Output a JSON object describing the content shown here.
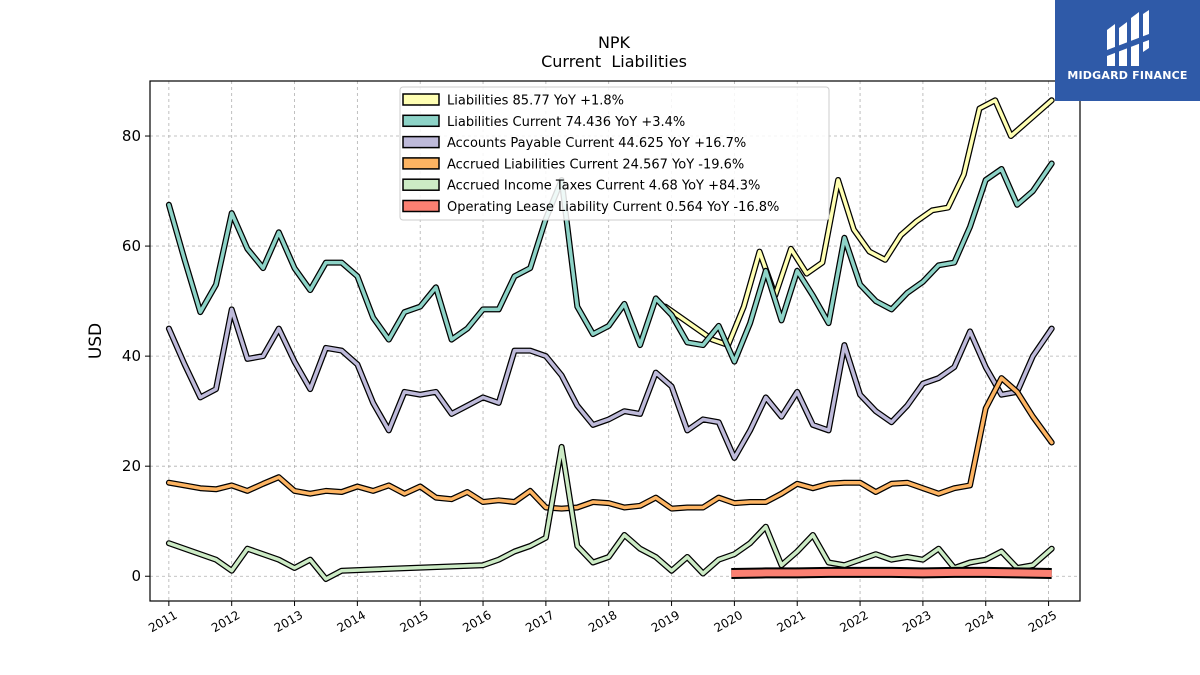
{
  "header": {
    "title": "NPK",
    "subtitle": "Current  Liabilities"
  },
  "logo": {
    "text": "MIDGARD FINANCE",
    "color": "#2f5aa8"
  },
  "chart_data": {
    "type": "line",
    "title": "NPK",
    "subtitle": "Current  Liabilities",
    "xlabel": "",
    "ylabel": "USD",
    "xlim": [
      2010.7,
      2025.5
    ],
    "ylim": [
      -4.5,
      90
    ],
    "x_ticks": [
      2011,
      2012,
      2013,
      2014,
      2015,
      2016,
      2017,
      2018,
      2019,
      2020,
      2021,
      2022,
      2023,
      2024,
      2025
    ],
    "x_tick_labels": [
      "2011",
      "2012",
      "2013",
      "2014",
      "2015",
      "2016",
      "2017",
      "2018",
      "2019",
      "2020",
      "2021",
      "2022",
      "2023",
      "2024",
      "2025"
    ],
    "y_ticks": [
      0,
      20,
      40,
      60,
      80
    ],
    "grid": true,
    "legend_position": "top-center",
    "series": [
      {
        "name": "Liabilities",
        "legend": "Liabilities  85.77 YoY +1.8%",
        "color": "#ffffb3",
        "points": [
          [
            2018.9,
            49.0
          ],
          [
            2019.15,
            47.0
          ],
          [
            2019.4,
            45.0
          ],
          [
            2019.65,
            43.0
          ],
          [
            2019.9,
            42.0
          ],
          [
            2020.15,
            49.0
          ],
          [
            2020.4,
            59.0
          ],
          [
            2020.65,
            51.0
          ],
          [
            2020.9,
            59.5
          ],
          [
            2021.15,
            55.0
          ],
          [
            2021.4,
            57.0
          ],
          [
            2021.65,
            72.0
          ],
          [
            2021.9,
            63.0
          ],
          [
            2022.15,
            59.0
          ],
          [
            2022.4,
            57.5
          ],
          [
            2022.65,
            62.0
          ],
          [
            2022.9,
            64.5
          ],
          [
            2023.15,
            66.5
          ],
          [
            2023.4,
            67.0
          ],
          [
            2023.65,
            73.0
          ],
          [
            2023.9,
            85.0
          ],
          [
            2024.15,
            86.5
          ],
          [
            2024.4,
            80.0
          ],
          [
            2024.65,
            82.5
          ],
          [
            2025.05,
            86.5
          ]
        ]
      },
      {
        "name": "Liabilities Current",
        "legend": "Liabilities Current  74.436 YoY +3.4%",
        "color": "#8dd3c7",
        "points": [
          [
            2011.0,
            67.5
          ],
          [
            2011.25,
            57.5
          ],
          [
            2011.5,
            48.0
          ],
          [
            2011.75,
            53.0
          ],
          [
            2012.0,
            66.0
          ],
          [
            2012.25,
            59.5
          ],
          [
            2012.5,
            56.0
          ],
          [
            2012.75,
            62.5
          ],
          [
            2013.0,
            56.0
          ],
          [
            2013.25,
            52.0
          ],
          [
            2013.5,
            57.0
          ],
          [
            2013.75,
            57.0
          ],
          [
            2014.0,
            54.5
          ],
          [
            2014.25,
            47.0
          ],
          [
            2014.5,
            43.0
          ],
          [
            2014.75,
            48.0
          ],
          [
            2015.0,
            49.0
          ],
          [
            2015.25,
            52.5
          ],
          [
            2015.5,
            43.0
          ],
          [
            2015.75,
            45.0
          ],
          [
            2016.0,
            48.5
          ],
          [
            2016.25,
            48.5
          ],
          [
            2016.5,
            54.5
          ],
          [
            2016.75,
            56.0
          ],
          [
            2017.0,
            65.0
          ],
          [
            2017.25,
            72.0
          ],
          [
            2017.5,
            49.0
          ],
          [
            2017.75,
            44.0
          ],
          [
            2018.0,
            45.5
          ],
          [
            2018.25,
            49.5
          ],
          [
            2018.5,
            42.0
          ],
          [
            2018.75,
            50.5
          ],
          [
            2019.0,
            47.5
          ],
          [
            2019.25,
            42.5
          ],
          [
            2019.5,
            42.0
          ],
          [
            2019.75,
            45.5
          ],
          [
            2020.0,
            39.0
          ],
          [
            2020.25,
            46.0
          ],
          [
            2020.5,
            55.5
          ],
          [
            2020.75,
            46.5
          ],
          [
            2021.0,
            55.5
          ],
          [
            2021.25,
            51.0
          ],
          [
            2021.5,
            46.0
          ],
          [
            2021.75,
            61.5
          ],
          [
            2022.0,
            53.0
          ],
          [
            2022.25,
            50.0
          ],
          [
            2022.5,
            48.5
          ],
          [
            2022.75,
            51.5
          ],
          [
            2023.0,
            53.5
          ],
          [
            2023.25,
            56.5
          ],
          [
            2023.5,
            57.0
          ],
          [
            2023.75,
            63.5
          ],
          [
            2024.0,
            72.0
          ],
          [
            2024.25,
            74.0
          ],
          [
            2024.5,
            67.5
          ],
          [
            2024.75,
            70.0
          ],
          [
            2025.05,
            75.0
          ]
        ]
      },
      {
        "name": "Accounts Payable Current",
        "legend": "Accounts Payable Current  44.625 YoY +16.7%",
        "color": "#bebada",
        "points": [
          [
            2011.0,
            45.0
          ],
          [
            2011.25,
            38.5
          ],
          [
            2011.5,
            32.5
          ],
          [
            2011.75,
            34.0
          ],
          [
            2012.0,
            48.5
          ],
          [
            2012.25,
            39.5
          ],
          [
            2012.5,
            40.0
          ],
          [
            2012.75,
            45.0
          ],
          [
            2013.0,
            39.0
          ],
          [
            2013.25,
            34.0
          ],
          [
            2013.5,
            41.5
          ],
          [
            2013.75,
            41.0
          ],
          [
            2014.0,
            38.5
          ],
          [
            2014.25,
            31.5
          ],
          [
            2014.5,
            26.5
          ],
          [
            2014.75,
            33.5
          ],
          [
            2015.0,
            33.0
          ],
          [
            2015.25,
            33.5
          ],
          [
            2015.5,
            29.5
          ],
          [
            2015.75,
            31.0
          ],
          [
            2016.0,
            32.5
          ],
          [
            2016.25,
            31.5
          ],
          [
            2016.5,
            41.0
          ],
          [
            2016.75,
            41.0
          ],
          [
            2017.0,
            40.0
          ],
          [
            2017.25,
            36.5
          ],
          [
            2017.5,
            31.0
          ],
          [
            2017.75,
            27.5
          ],
          [
            2018.0,
            28.5
          ],
          [
            2018.25,
            30.0
          ],
          [
            2018.5,
            29.5
          ],
          [
            2018.75,
            37.0
          ],
          [
            2019.0,
            34.5
          ],
          [
            2019.25,
            26.5
          ],
          [
            2019.5,
            28.5
          ],
          [
            2019.75,
            28.0
          ],
          [
            2020.0,
            21.5
          ],
          [
            2020.25,
            26.5
          ],
          [
            2020.5,
            32.5
          ],
          [
            2020.75,
            29.0
          ],
          [
            2021.0,
            33.5
          ],
          [
            2021.25,
            27.5
          ],
          [
            2021.5,
            26.5
          ],
          [
            2021.75,
            42.0
          ],
          [
            2022.0,
            33.0
          ],
          [
            2022.25,
            30.0
          ],
          [
            2022.5,
            28.0
          ],
          [
            2022.75,
            31.0
          ],
          [
            2023.0,
            35.0
          ],
          [
            2023.25,
            36.0
          ],
          [
            2023.5,
            38.0
          ],
          [
            2023.75,
            44.5
          ],
          [
            2024.0,
            38.0
          ],
          [
            2024.25,
            33.0
          ],
          [
            2024.5,
            33.5
          ],
          [
            2024.75,
            40.0
          ],
          [
            2025.05,
            45.0
          ]
        ]
      },
      {
        "name": "Accrued Liabilities Current",
        "legend": "Accrued Liabilities Current  24.567 YoY -19.6%",
        "color": "#fdb462",
        "points": [
          [
            2011.0,
            17.0
          ],
          [
            2011.25,
            16.5
          ],
          [
            2011.5,
            16.0
          ],
          [
            2011.75,
            15.8
          ],
          [
            2012.0,
            16.5
          ],
          [
            2012.25,
            15.5
          ],
          [
            2012.5,
            16.8
          ],
          [
            2012.75,
            18.0
          ],
          [
            2013.0,
            15.5
          ],
          [
            2013.25,
            15.0
          ],
          [
            2013.5,
            15.5
          ],
          [
            2013.75,
            15.3
          ],
          [
            2014.0,
            16.3
          ],
          [
            2014.25,
            15.5
          ],
          [
            2014.5,
            16.5
          ],
          [
            2014.75,
            15.0
          ],
          [
            2015.0,
            16.3
          ],
          [
            2015.25,
            14.3
          ],
          [
            2015.5,
            14.0
          ],
          [
            2015.75,
            15.3
          ],
          [
            2016.0,
            13.5
          ],
          [
            2016.25,
            13.8
          ],
          [
            2016.5,
            13.5
          ],
          [
            2016.75,
            15.5
          ],
          [
            2017.0,
            12.5
          ],
          [
            2017.25,
            12.3
          ],
          [
            2017.5,
            12.5
          ],
          [
            2017.75,
            13.5
          ],
          [
            2018.0,
            13.3
          ],
          [
            2018.25,
            12.5
          ],
          [
            2018.5,
            12.8
          ],
          [
            2018.75,
            14.3
          ],
          [
            2019.0,
            12.3
          ],
          [
            2019.25,
            12.5
          ],
          [
            2019.5,
            12.5
          ],
          [
            2019.75,
            14.3
          ],
          [
            2020.0,
            13.3
          ],
          [
            2020.25,
            13.5
          ],
          [
            2020.5,
            13.5
          ],
          [
            2020.75,
            15.0
          ],
          [
            2021.0,
            16.8
          ],
          [
            2021.25,
            16.0
          ],
          [
            2021.5,
            16.8
          ],
          [
            2021.75,
            17.0
          ],
          [
            2022.0,
            17.0
          ],
          [
            2022.25,
            15.3
          ],
          [
            2022.5,
            16.8
          ],
          [
            2022.75,
            17.0
          ],
          [
            2023.0,
            16.0
          ],
          [
            2023.25,
            15.0
          ],
          [
            2023.5,
            16.0
          ],
          [
            2023.75,
            16.5
          ],
          [
            2024.0,
            30.5
          ],
          [
            2024.25,
            36.0
          ],
          [
            2024.5,
            33.5
          ],
          [
            2024.75,
            29.0
          ],
          [
            2025.05,
            24.3
          ]
        ]
      },
      {
        "name": "Accrued Income Taxes Current",
        "legend": "Accrued Income Taxes Current  4.68 YoY +84.3%",
        "color": "#ccebc5",
        "points": [
          [
            2011.0,
            6.0
          ],
          [
            2011.25,
            5.0
          ],
          [
            2011.5,
            4.0
          ],
          [
            2011.75,
            3.0
          ],
          [
            2012.0,
            1.0
          ],
          [
            2012.25,
            5.0
          ],
          [
            2012.5,
            4.0
          ],
          [
            2012.75,
            3.0
          ],
          [
            2013.0,
            1.5
          ],
          [
            2013.25,
            3.0
          ],
          [
            2013.5,
            -0.5
          ],
          [
            2013.75,
            1.0
          ],
          [
            2016.0,
            2.0
          ],
          [
            2016.25,
            3.0
          ],
          [
            2016.5,
            4.5
          ],
          [
            2016.75,
            5.5
          ],
          [
            2017.0,
            7.0
          ],
          [
            2017.25,
            23.5
          ],
          [
            2017.5,
            5.5
          ],
          [
            2017.75,
            2.5
          ],
          [
            2018.0,
            3.5
          ],
          [
            2018.25,
            7.5
          ],
          [
            2018.5,
            5.0
          ],
          [
            2018.75,
            3.5
          ],
          [
            2019.0,
            1.0
          ],
          [
            2019.25,
            3.5
          ],
          [
            2019.5,
            0.5
          ],
          [
            2019.75,
            3.0
          ],
          [
            2020.0,
            4.0
          ],
          [
            2020.25,
            6.0
          ],
          [
            2020.5,
            9.0
          ],
          [
            2020.75,
            2.0
          ],
          [
            2021.0,
            4.5
          ],
          [
            2021.25,
            7.5
          ],
          [
            2021.5,
            2.5
          ],
          [
            2021.75,
            2.0
          ],
          [
            2022.0,
            3.0
          ],
          [
            2022.25,
            4.0
          ],
          [
            2022.5,
            3.0
          ],
          [
            2022.75,
            3.5
          ],
          [
            2023.0,
            3.0
          ],
          [
            2023.25,
            5.0
          ],
          [
            2023.5,
            1.5
          ],
          [
            2023.75,
            2.5
          ],
          [
            2024.0,
            3.0
          ],
          [
            2024.25,
            4.5
          ],
          [
            2024.5,
            1.5
          ],
          [
            2024.75,
            2.0
          ],
          [
            2025.05,
            5.0
          ]
        ]
      },
      {
        "name": "Operating Lease Liability Current",
        "legend": "Operating Lease Liability Current  0.564 YoY -16.8%",
        "color": "#fb8072",
        "points": [
          [
            2019.95,
            0.5
          ],
          [
            2020.5,
            0.6
          ],
          [
            2021.0,
            0.6
          ],
          [
            2021.5,
            0.7
          ],
          [
            2022.0,
            0.7
          ],
          [
            2022.5,
            0.7
          ],
          [
            2023.0,
            0.6
          ],
          [
            2023.5,
            0.7
          ],
          [
            2024.0,
            0.7
          ],
          [
            2024.5,
            0.6
          ],
          [
            2025.05,
            0.5
          ]
        ]
      }
    ]
  }
}
